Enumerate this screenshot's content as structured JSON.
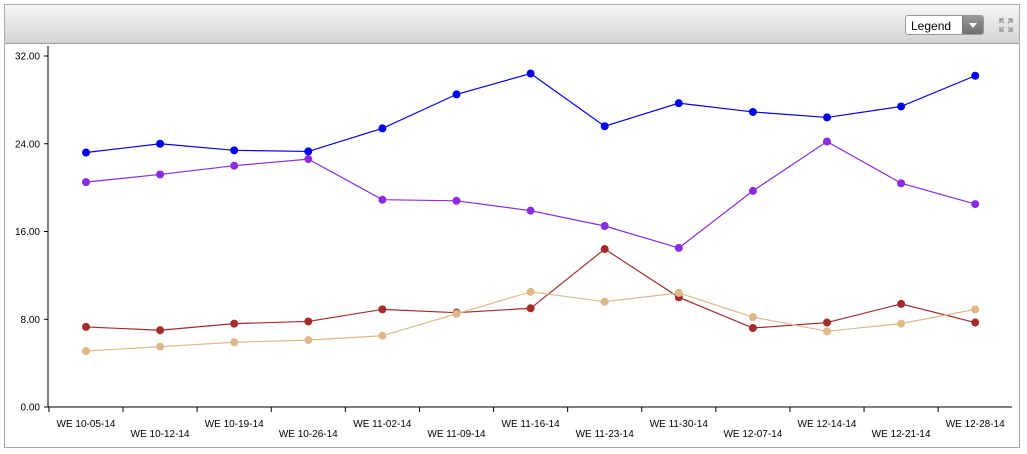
{
  "toolbar": {
    "legend_label": "Legend",
    "expand_icon": "expand-arrows-icon"
  },
  "chart_data": {
    "type": "line",
    "ylim": [
      0,
      32
    ],
    "yticks": [
      "0.00",
      "8.00",
      "16.00",
      "24.00",
      "32.00"
    ],
    "grid": false,
    "categories": [
      "WE 10-05-14",
      "WE 10-12-14",
      "WE 10-19-14",
      "WE 10-26-14",
      "WE 11-02-14",
      "WE 11-09-14",
      "WE 11-16-14",
      "WE 11-23-14",
      "WE 11-30-14",
      "WE 12-07-14",
      "WE 12-14-14",
      "WE 12-21-14",
      "WE 12-28-14"
    ],
    "series": [
      {
        "color": "#0000ee",
        "values": [
          23.2,
          24.0,
          23.4,
          23.3,
          25.4,
          28.5,
          30.4,
          25.6,
          27.7,
          26.9,
          26.4,
          27.4,
          30.2
        ]
      },
      {
        "color": "#8a2be2",
        "values": [
          20.5,
          21.2,
          22.0,
          22.6,
          18.9,
          18.8,
          17.9,
          16.5,
          14.5,
          19.7,
          24.2,
          20.4,
          18.5
        ]
      },
      {
        "color": "#a52a2a",
        "values": [
          7.3,
          7.0,
          7.6,
          7.8,
          8.9,
          8.6,
          9.0,
          14.4,
          10.0,
          7.2,
          7.7,
          9.4,
          7.7
        ]
      },
      {
        "color": "#deb887",
        "values": [
          5.1,
          5.5,
          5.9,
          6.1,
          6.5,
          8.5,
          10.5,
          9.6,
          10.4,
          8.2,
          6.9,
          7.6,
          8.9
        ]
      }
    ]
  }
}
